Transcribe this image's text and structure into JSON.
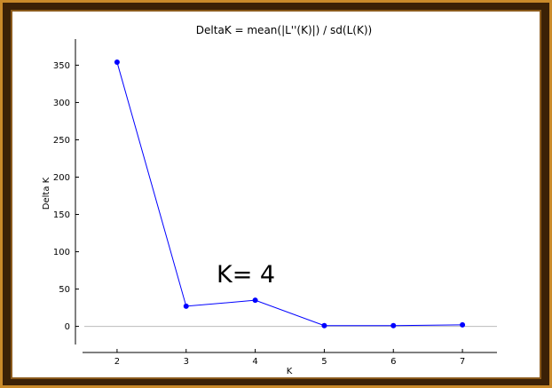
{
  "chart_data": {
    "type": "line",
    "title": "DeltaK = mean(|L''(K)|) / sd(L(K))",
    "xlabel": "K",
    "ylabel": "Delta K",
    "x": [
      2,
      3,
      4,
      5,
      6,
      7
    ],
    "xticks": [
      "2",
      "3",
      "4",
      "5",
      "6",
      "7"
    ],
    "xlim": [
      1.5,
      7.5
    ],
    "ylim": [
      -35,
      385
    ],
    "yticks": [
      "0",
      "50",
      "100",
      "150",
      "200",
      "250",
      "300",
      "350"
    ],
    "series": [
      {
        "values": [
          354,
          27,
          35,
          1,
          1,
          2
        ]
      }
    ],
    "zero_line": true,
    "annotation": "K= 4",
    "line_color": "#0000ff",
    "marker_color": "#0000ff"
  }
}
